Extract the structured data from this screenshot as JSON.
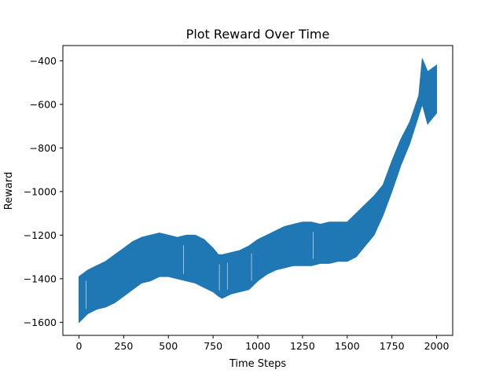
{
  "chart_data": {
    "type": "line",
    "title": "Plot Reward Over Time",
    "xlabel": "Time Steps",
    "ylabel": "Reward",
    "xlim": [
      -90,
      2090
    ],
    "ylim": [
      -1660,
      -330
    ],
    "xticks": [
      0,
      250,
      500,
      750,
      1000,
      1250,
      1500,
      1750,
      2000
    ],
    "yticks": [
      -1600,
      -1400,
      -1200,
      -1000,
      -800,
      -600,
      -400
    ],
    "xtick_labels": [
      "0",
      "250",
      "500",
      "750",
      "1000",
      "1250",
      "1500",
      "1750",
      "2000"
    ],
    "ytick_labels": [
      "−1600",
      "−1400",
      "−1200",
      "−1000",
      "−800",
      "−600",
      "−400"
    ],
    "grid": false,
    "line_color": "#1f77b4",
    "series": [
      {
        "x": [
          0,
          50,
          100,
          150,
          200,
          250,
          300,
          350,
          400,
          450,
          500,
          550,
          600,
          650,
          700,
          750,
          780,
          800,
          850,
          900,
          950,
          1000,
          1050,
          1100,
          1150,
          1200,
          1250,
          1300,
          1350,
          1400,
          1450,
          1500,
          1550,
          1600,
          1650,
          1700,
          1750,
          1800,
          1850,
          1900,
          1920,
          1950,
          2000
        ],
        "upper": [
          -1390,
          -1360,
          -1340,
          -1320,
          -1290,
          -1260,
          -1230,
          -1210,
          -1200,
          -1190,
          -1200,
          -1210,
          -1200,
          -1200,
          -1220,
          -1260,
          -1290,
          -1290,
          -1280,
          -1270,
          -1250,
          -1220,
          -1200,
          -1180,
          -1160,
          -1150,
          -1140,
          -1140,
          -1150,
          -1140,
          -1140,
          -1140,
          -1100,
          -1060,
          -1020,
          -970,
          -860,
          -760,
          -680,
          -560,
          -390,
          -450,
          -420
        ],
        "lower": [
          -1600,
          -1560,
          -1540,
          -1530,
          -1510,
          -1480,
          -1450,
          -1420,
          -1410,
          -1390,
          -1390,
          -1400,
          -1410,
          -1420,
          -1440,
          -1460,
          -1480,
          -1490,
          -1470,
          -1460,
          -1450,
          -1410,
          -1380,
          -1360,
          -1350,
          -1340,
          -1340,
          -1340,
          -1330,
          -1330,
          -1320,
          -1320,
          -1300,
          -1250,
          -1200,
          -1110,
          -1000,
          -880,
          -780,
          -650,
          -600,
          -690,
          -640
        ]
      }
    ]
  }
}
